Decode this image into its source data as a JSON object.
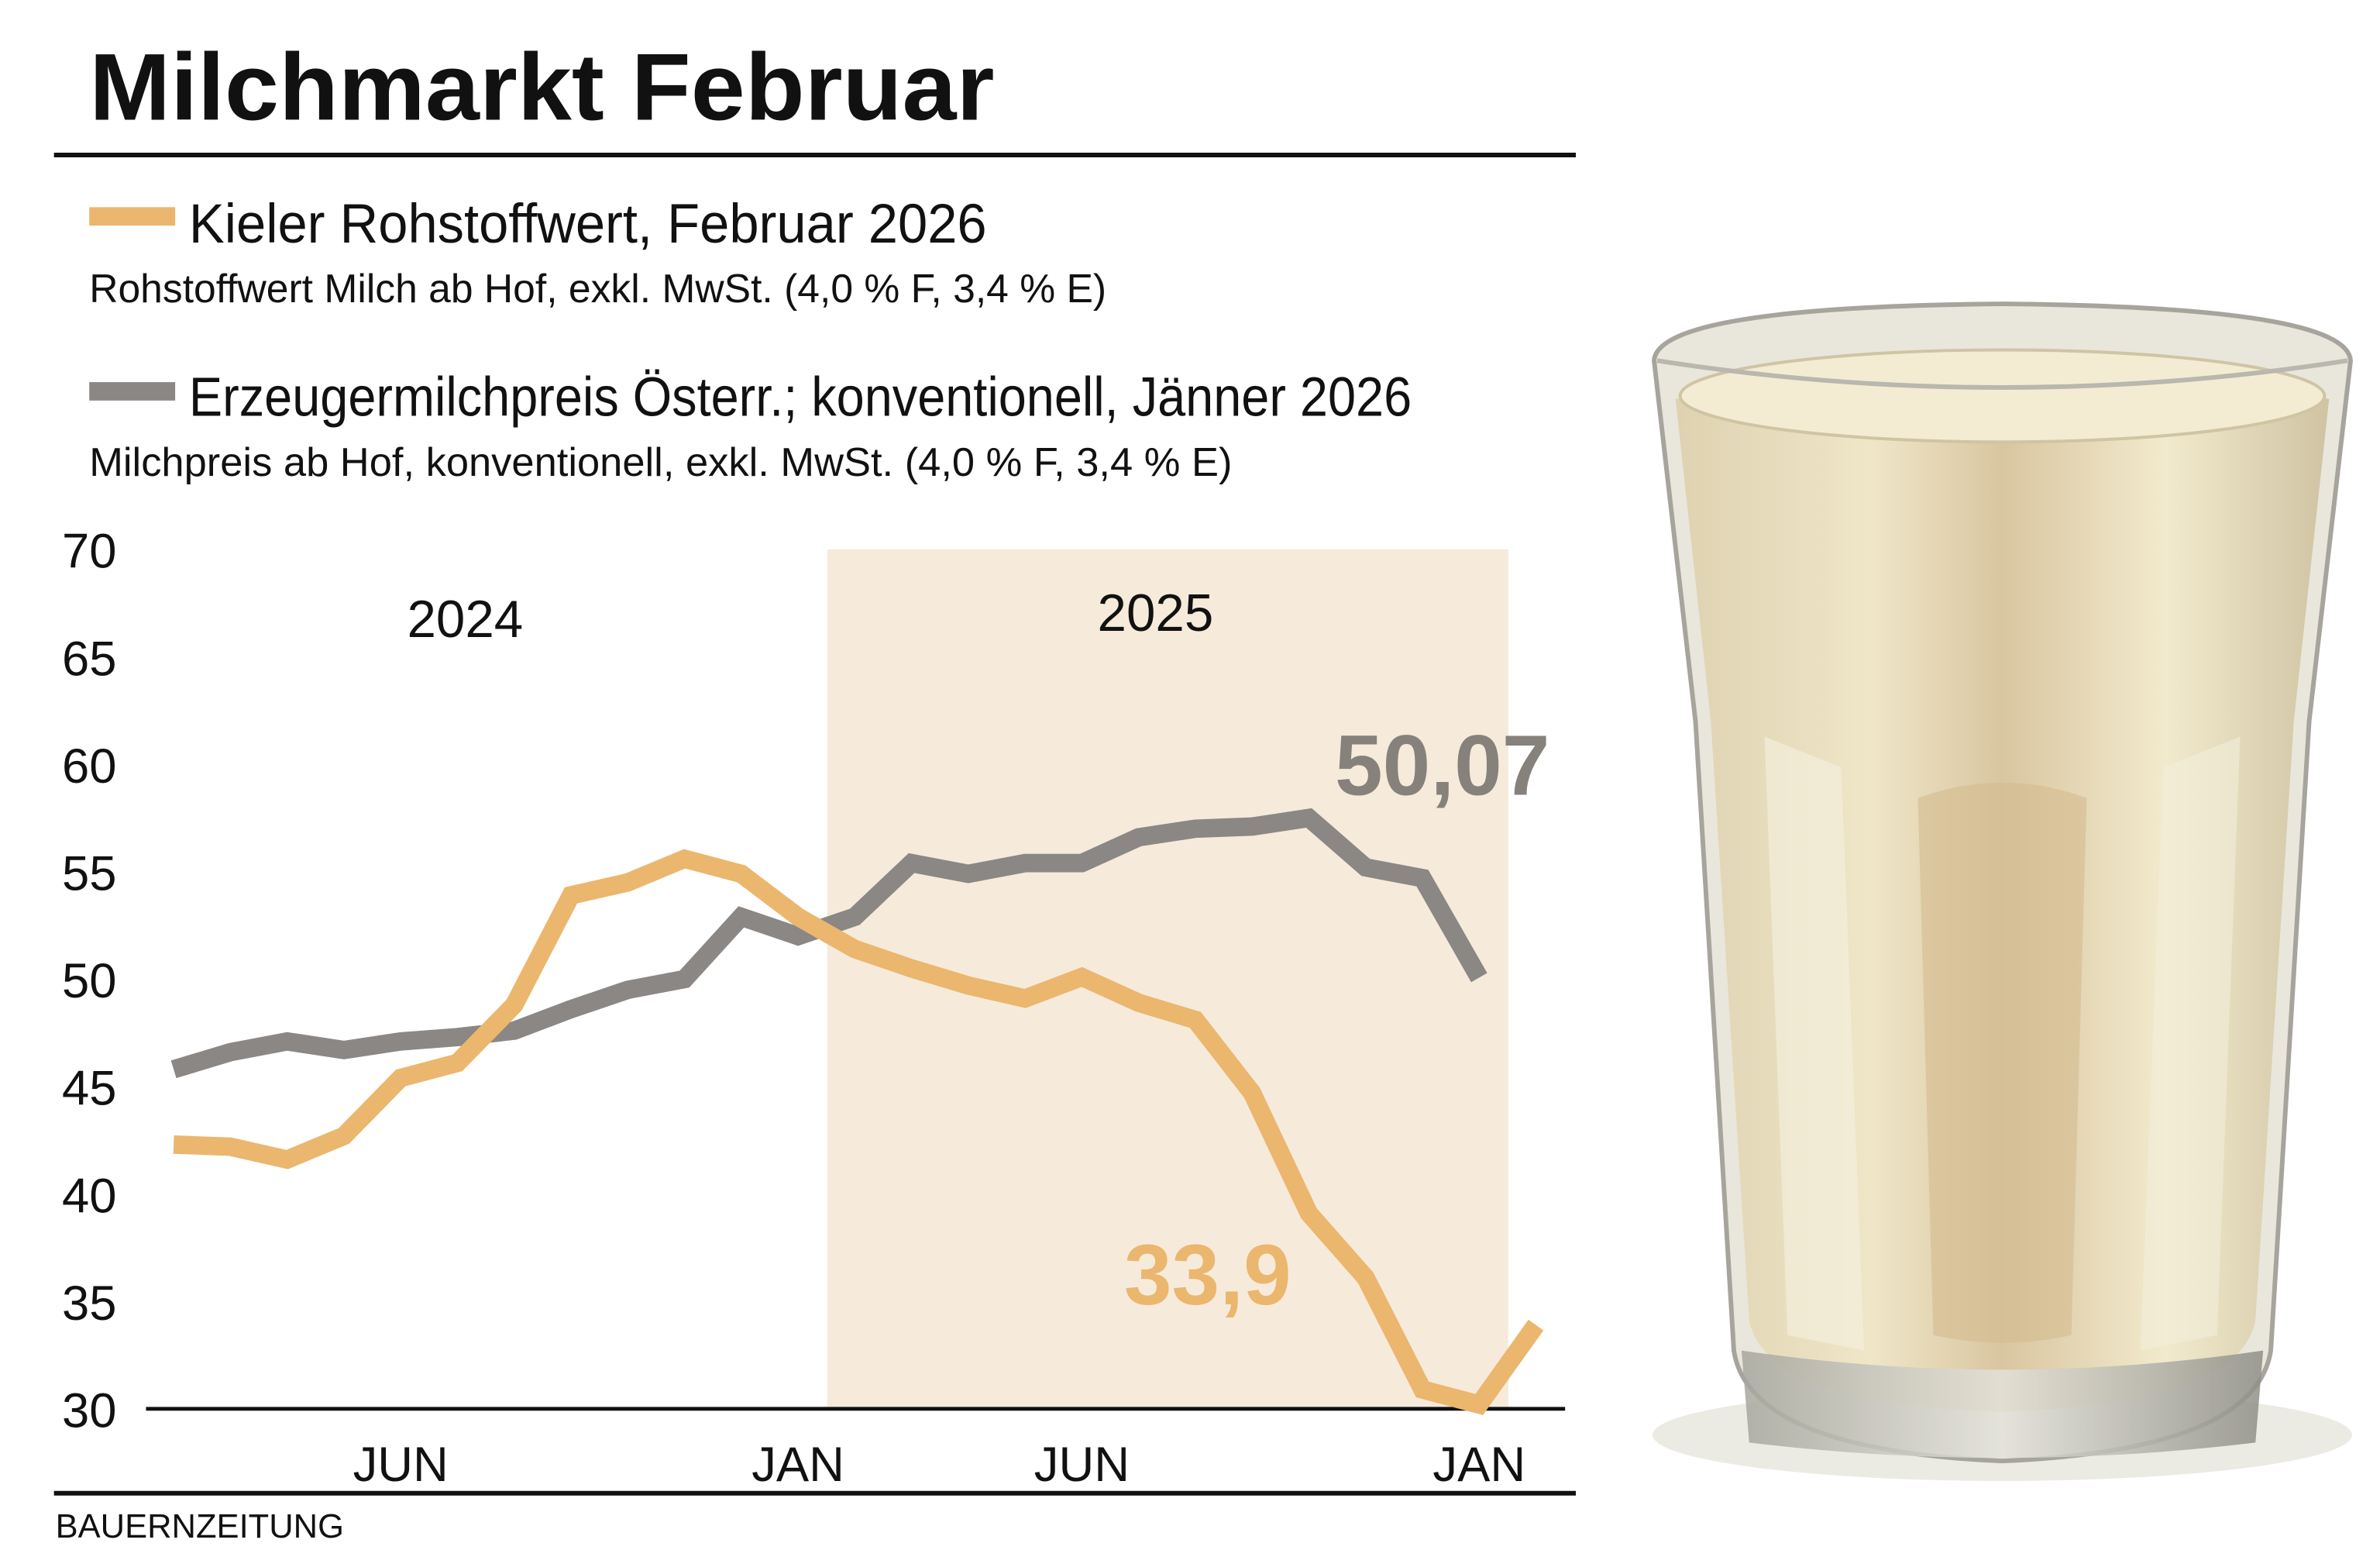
{
  "title": "Milchmarkt Februar",
  "legend": [
    {
      "label": "Kieler Rohstoffwert, Februar 2026",
      "sub": "Rohstoffwert Milch ab Hof, exkl. MwSt. (4,0 % F, 3,4 % E)",
      "color": "#ebb66d"
    },
    {
      "label": "Erzeugermilchpreis Österr.; konventionell, Jänner 2026",
      "sub": "Milchpreis ab Hof, konventionell, exkl. MwSt. (4,0 % F, 3,4 % E)",
      "color": "#8a8785"
    }
  ],
  "source": "BAUERNZEITUNG",
  "chart_data": {
    "type": "line",
    "x": [
      "2024-02",
      "2024-03",
      "2024-04",
      "2024-05",
      "2024-06",
      "2024-07",
      "2024-08",
      "2024-09",
      "2024-10",
      "2024-11",
      "2024-12",
      "2025-01",
      "2025-02",
      "2025-03",
      "2025-04",
      "2025-05",
      "2025-06",
      "2025-07",
      "2025-08",
      "2025-09",
      "2025-10",
      "2025-11",
      "2025-12",
      "2026-01",
      "2026-02"
    ],
    "series": [
      {
        "name": "Kieler Rohstoffwert, Februar 2026",
        "color": "#ebb66d",
        "values": [
          42.3,
          42.2,
          41.6,
          42.7,
          45.4,
          46.1,
          48.8,
          53.9,
          54.5,
          55.6,
          54.9,
          52.9,
          51.4,
          50.5,
          49.7,
          49.1,
          50.1,
          48.9,
          48.1,
          44.7,
          39.1,
          36.1,
          30.9,
          30.2,
          33.9
        ]
      },
      {
        "name": "Erzeugermilchpreis Österr.; konventionell, Jänner 2026",
        "color": "#8a8785",
        "values": [
          45.8,
          46.6,
          47.1,
          46.7,
          47.1,
          47.3,
          47.6,
          48.6,
          49.5,
          50.0,
          52.9,
          52.0,
          52.9,
          55.4,
          54.9,
          55.4,
          55.4,
          56.6,
          57.0,
          57.1,
          57.5,
          55.2,
          54.7,
          50.07,
          null
        ]
      }
    ],
    "annotations": [
      {
        "text": "50,07",
        "series": 1,
        "color": "#86817b"
      },
      {
        "text": "33,9",
        "series": 0,
        "color": "#ebb66d"
      }
    ],
    "year_labels": [
      "2024",
      "2025"
    ],
    "highlight_band": {
      "from": "2025-01",
      "to": "2026-01",
      "color": "#f6eadb"
    },
    "x_ticks": [
      {
        "label": "JUN",
        "at": "2024-06"
      },
      {
        "label": "JAN",
        "at": "2025-01"
      },
      {
        "label": "JUN",
        "at": "2025-06"
      },
      {
        "label": "JAN",
        "at": "2026-01"
      }
    ],
    "y_ticks": [
      "70",
      "65",
      "60",
      "55",
      "50",
      "45",
      "40",
      "35",
      "30"
    ],
    "ylim": [
      30,
      70
    ],
    "xlabel": "",
    "ylabel": "",
    "grid": false,
    "legend_position": "top"
  }
}
